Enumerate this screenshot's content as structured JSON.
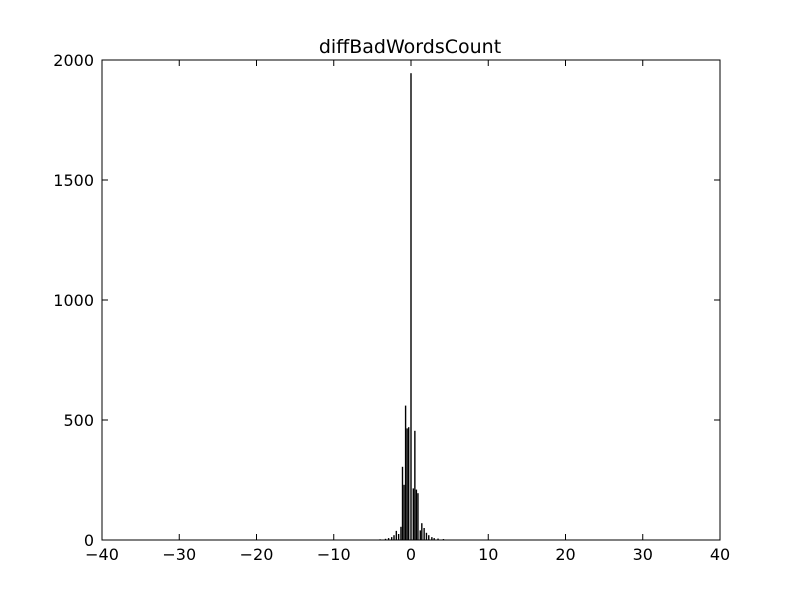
{
  "chart_data": {
    "type": "bar",
    "title": "diffBadWordsCount",
    "xlabel": "",
    "ylabel": "",
    "xlim": [
      -40,
      40
    ],
    "ylim": [
      0,
      2000
    ],
    "xticks": [
      -40,
      -30,
      -20,
      -10,
      0,
      10,
      20,
      30,
      40
    ],
    "xtick_labels": [
      "−40",
      "−30",
      "−20",
      "−10",
      "0",
      "10",
      "20",
      "30",
      "40"
    ],
    "yticks": [
      0,
      500,
      1000,
      1500,
      2000
    ],
    "ytick_labels": [
      "0",
      "500",
      "1000",
      "1500",
      "2000"
    ],
    "grid": false,
    "legend": "none",
    "bar_color": "#000000",
    "bins": [
      {
        "x": -32.0,
        "value": 2
      },
      {
        "x": -4.0,
        "value": 3
      },
      {
        "x": -3.3,
        "value": 5
      },
      {
        "x": -2.9,
        "value": 8
      },
      {
        "x": -2.5,
        "value": 12
      },
      {
        "x": -2.2,
        "value": 20
      },
      {
        "x": -1.9,
        "value": 38
      },
      {
        "x": -1.6,
        "value": 25
      },
      {
        "x": -1.3,
        "value": 55
      },
      {
        "x": -1.1,
        "value": 305
      },
      {
        "x": -0.9,
        "value": 230
      },
      {
        "x": -0.7,
        "value": 560
      },
      {
        "x": -0.5,
        "value": 465
      },
      {
        "x": -0.3,
        "value": 470
      },
      {
        "x": 0.0,
        "value": 1945
      },
      {
        "x": 0.3,
        "value": 215
      },
      {
        "x": 0.5,
        "value": 455
      },
      {
        "x": 0.7,
        "value": 210
      },
      {
        "x": 0.9,
        "value": 195
      },
      {
        "x": 1.2,
        "value": 40
      },
      {
        "x": 1.4,
        "value": 70
      },
      {
        "x": 1.7,
        "value": 50
      },
      {
        "x": 2.0,
        "value": 30
      },
      {
        "x": 2.3,
        "value": 20
      },
      {
        "x": 2.7,
        "value": 12
      },
      {
        "x": 3.0,
        "value": 8
      },
      {
        "x": 3.5,
        "value": 6
      },
      {
        "x": 4.2,
        "value": 4
      },
      {
        "x": 5.0,
        "value": 2
      },
      {
        "x": 6.5,
        "value": 2
      },
      {
        "x": 8.0,
        "value": 1
      },
      {
        "x": 30.0,
        "value": 1
      }
    ]
  }
}
